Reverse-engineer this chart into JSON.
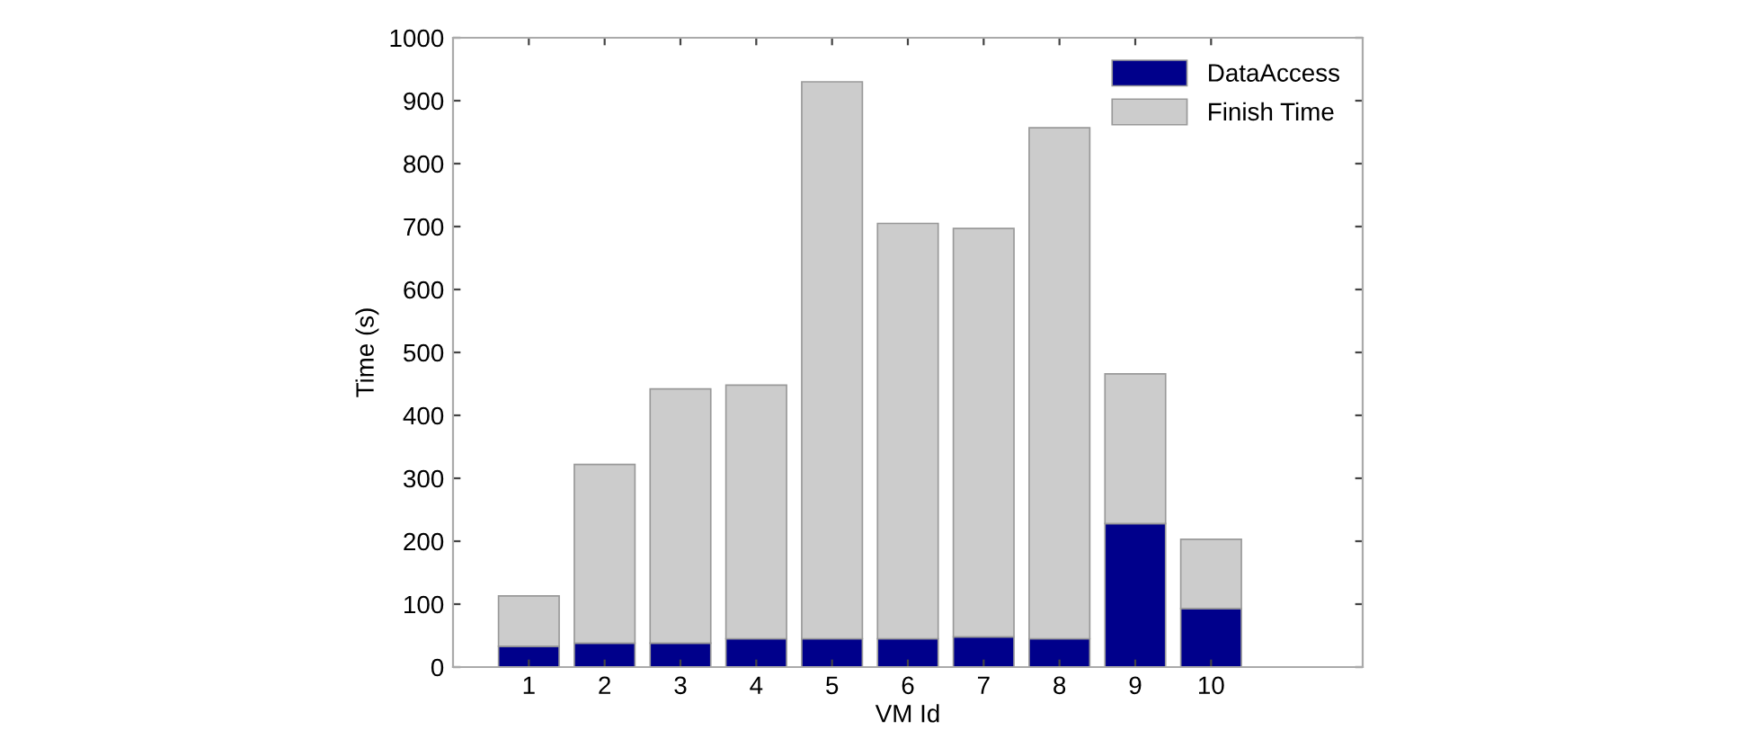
{
  "chart_data": {
    "type": "bar",
    "stacked": true,
    "xlabel": "VM Id",
    "ylabel": "Time (s)",
    "x": [
      1,
      2,
      3,
      4,
      5,
      6,
      7,
      8,
      9,
      10
    ],
    "xlim": [
      0,
      12
    ],
    "xticks": [
      1,
      2,
      3,
      4,
      5,
      6,
      7,
      8,
      9,
      10
    ],
    "ylim": [
      0,
      1000
    ],
    "yticks": [
      0,
      100,
      200,
      300,
      400,
      500,
      600,
      700,
      800,
      900,
      1000
    ],
    "series": [
      {
        "name": "DataAccess",
        "color": "#00008b",
        "values": [
          33,
          38,
          38,
          45,
          45,
          45,
          48,
          45,
          228,
          93
        ]
      },
      {
        "name": "Finish Time",
        "color": "#cccccc",
        "values": [
          80,
          284,
          404,
          403,
          885,
          660,
          649,
          812,
          238,
          110
        ]
      }
    ],
    "legend": "top right",
    "grid": false
  }
}
